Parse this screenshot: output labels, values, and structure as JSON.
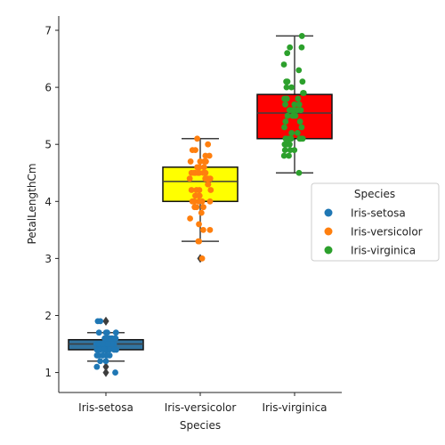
{
  "chart_data": {
    "type": "box",
    "xlabel": "Species",
    "ylabel": "PetalLengthCm",
    "ylim": [
      0.65,
      7.25
    ],
    "yticks": [
      1,
      2,
      3,
      4,
      5,
      6,
      7
    ],
    "categories": [
      "Iris-setosa",
      "Iris-versicolor",
      "Iris-virginica"
    ],
    "legend": {
      "title": "Species",
      "placement": "center-right",
      "entries": [
        "Iris-setosa",
        "Iris-versicolor",
        "Iris-virginica"
      ]
    },
    "boxes": [
      {
        "category": "Iris-setosa",
        "box_color": "#3274a1",
        "whisker_low": 1.2,
        "q1": 1.4,
        "median": 1.5,
        "q3": 1.575,
        "whisker_high": 1.7,
        "fliers": [
          1.0,
          1.1,
          1.9,
          1.9
        ]
      },
      {
        "category": "Iris-versicolor",
        "box_color": "#ffff00",
        "whisker_low": 3.3,
        "q1": 4.0,
        "median": 4.35,
        "q3": 4.6,
        "whisker_high": 5.1,
        "fliers": [
          3.0
        ]
      },
      {
        "category": "Iris-virginica",
        "box_color": "#ff0000",
        "whisker_low": 4.5,
        "q1": 5.1,
        "median": 5.55,
        "q3": 5.875,
        "whisker_high": 6.9,
        "fliers": []
      }
    ],
    "strip_series": [
      {
        "name": "Iris-setosa",
        "color": "#1f77b4",
        "values": [
          1.4,
          1.4,
          1.3,
          1.5,
          1.4,
          1.7,
          1.4,
          1.5,
          1.4,
          1.5,
          1.5,
          1.6,
          1.4,
          1.1,
          1.2,
          1.5,
          1.3,
          1.4,
          1.7,
          1.5,
          1.7,
          1.5,
          1.0,
          1.7,
          1.9,
          1.6,
          1.6,
          1.5,
          1.4,
          1.6,
          1.6,
          1.5,
          1.5,
          1.4,
          1.5,
          1.2,
          1.3,
          1.5,
          1.3,
          1.5,
          1.3,
          1.3,
          1.3,
          1.6,
          1.9,
          1.4,
          1.6,
          1.4,
          1.5,
          1.4
        ]
      },
      {
        "name": "Iris-versicolor",
        "color": "#ff7f0e",
        "values": [
          4.7,
          4.5,
          4.9,
          4.0,
          4.6,
          4.5,
          4.7,
          3.3,
          4.6,
          3.9,
          3.5,
          4.2,
          4.0,
          4.7,
          3.6,
          4.4,
          4.5,
          4.1,
          4.5,
          3.9,
          4.8,
          4.0,
          4.9,
          4.7,
          4.3,
          4.4,
          4.8,
          5.0,
          4.5,
          3.5,
          3.8,
          3.7,
          3.9,
          5.1,
          4.5,
          4.5,
          4.7,
          4.4,
          4.1,
          4.0,
          4.4,
          4.6,
          4.0,
          3.3,
          4.2,
          4.2,
          4.2,
          4.3,
          3.0,
          4.1
        ]
      },
      {
        "name": "Iris-virginica",
        "color": "#2ca02c",
        "values": [
          6.0,
          5.1,
          5.9,
          5.6,
          5.8,
          6.6,
          4.5,
          6.3,
          5.8,
          6.1,
          5.1,
          5.3,
          5.5,
          5.0,
          5.1,
          5.3,
          5.5,
          6.7,
          6.9,
          5.0,
          5.7,
          4.9,
          6.7,
          4.9,
          5.7,
          6.0,
          4.8,
          4.9,
          5.6,
          5.8,
          6.1,
          6.4,
          5.6,
          5.1,
          5.6,
          6.1,
          5.6,
          5.5,
          4.8,
          5.4,
          5.6,
          5.1,
          5.1,
          5.9,
          5.7,
          5.2,
          5.0,
          5.2,
          5.4,
          5.1
        ]
      }
    ]
  }
}
